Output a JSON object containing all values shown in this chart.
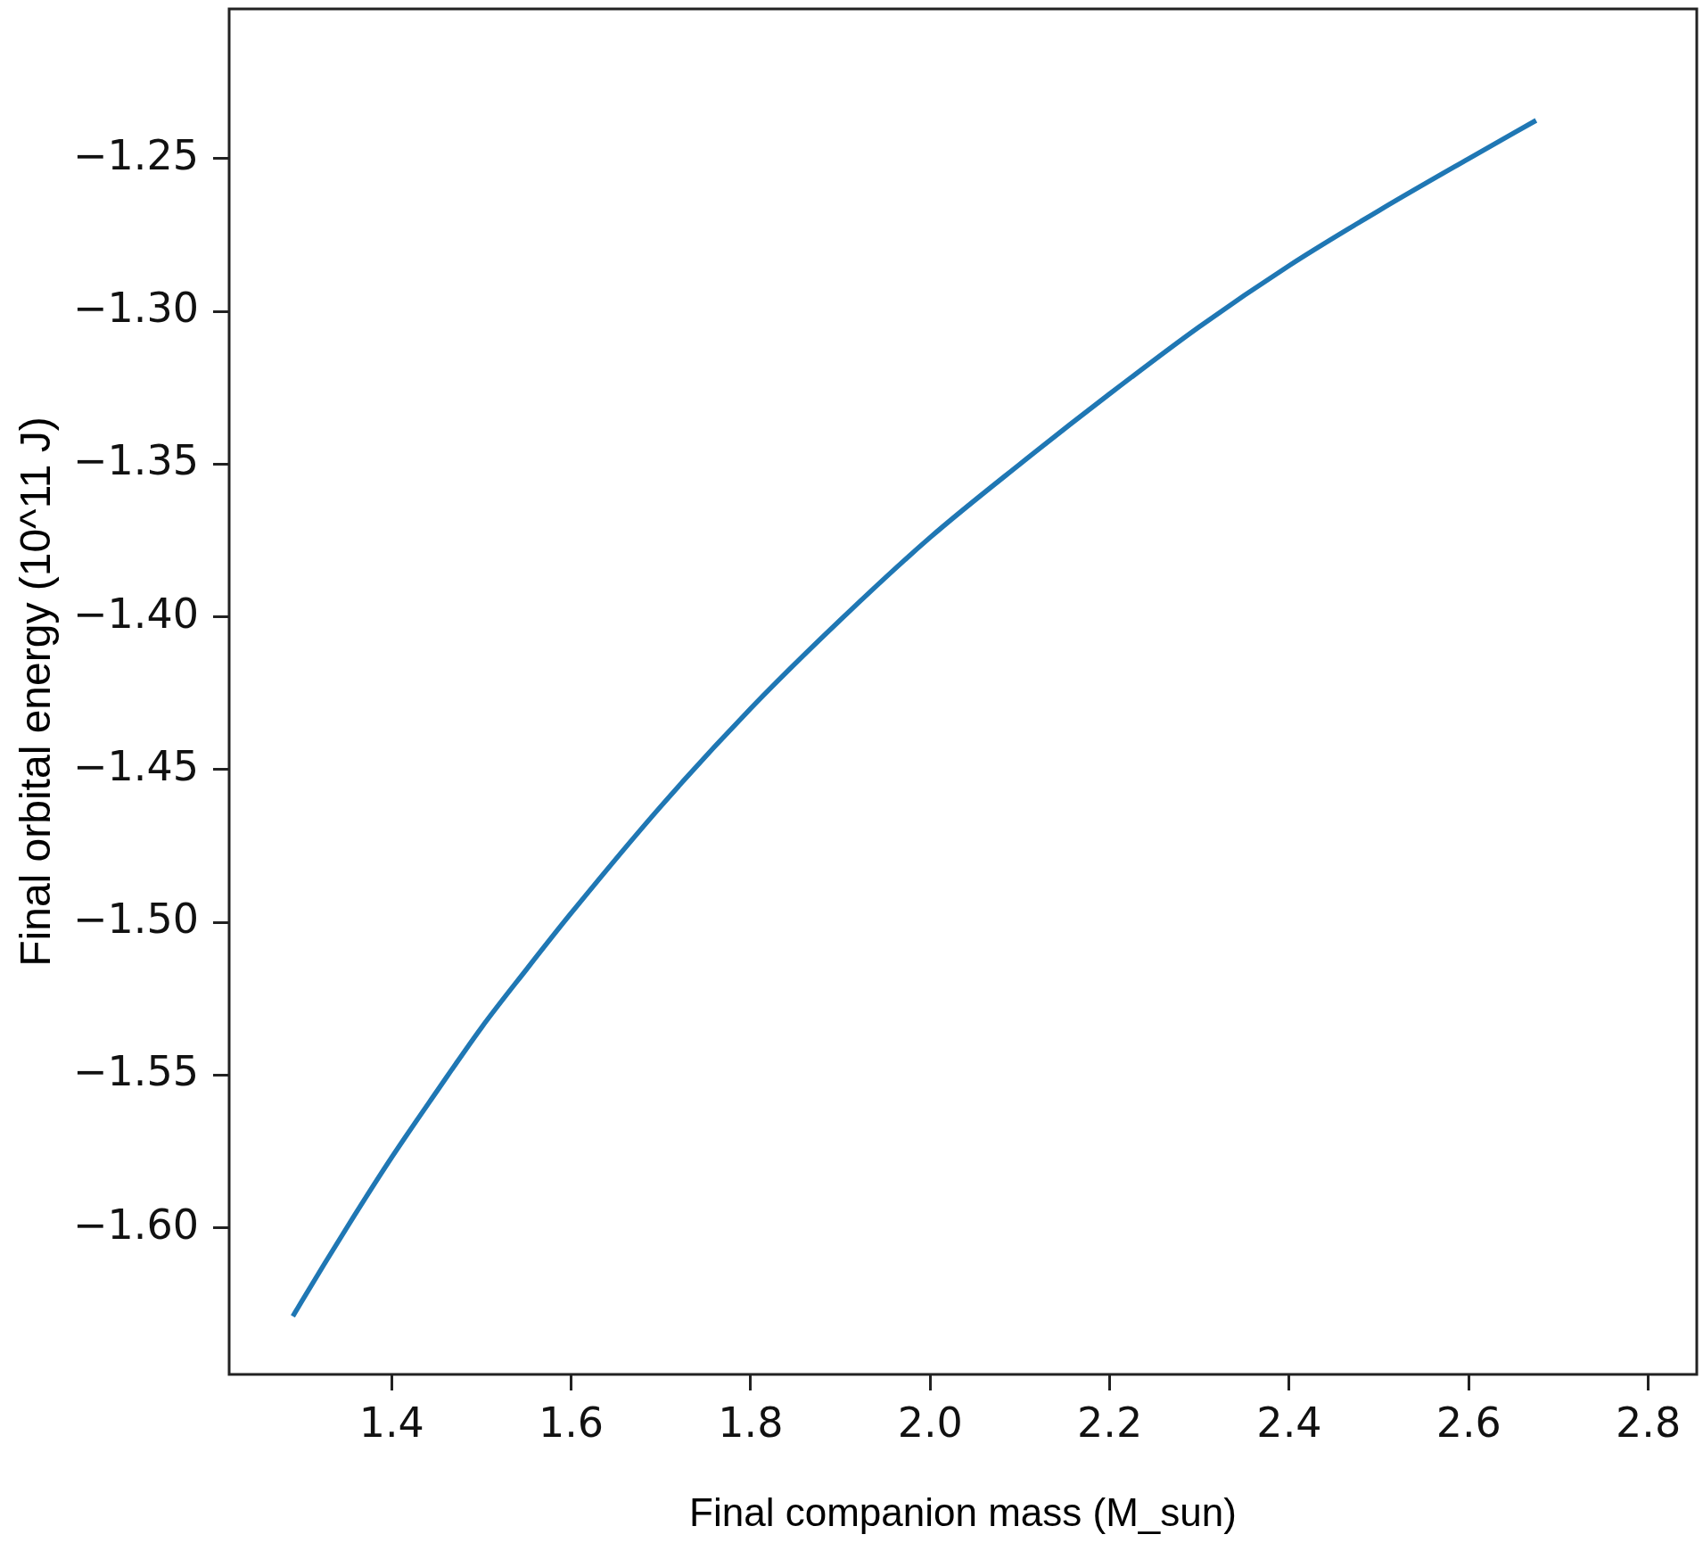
{
  "chart_data": {
    "type": "line",
    "xlabel": "Final companion mass (M_sun)",
    "ylabel": "Final orbital energy (10^11 J)",
    "x": [
      1.29,
      1.3,
      1.35,
      1.4,
      1.45,
      1.5,
      1.55,
      1.6,
      1.7,
      1.8,
      1.9,
      2.0,
      2.1,
      2.2,
      2.3,
      2.4,
      2.5,
      2.6,
      2.675
    ],
    "series": [
      {
        "color": "#1f77b4",
        "values": [
          -1.629,
          -1.624,
          -1.6,
          -1.577,
          -1.5555,
          -1.5345,
          -1.5155,
          -1.497,
          -1.462,
          -1.43,
          -1.401,
          -1.374,
          -1.35,
          -1.327,
          -1.305,
          -1.285,
          -1.267,
          -1.25,
          -1.2375
        ]
      }
    ],
    "xlim": [
      1.219,
      2.854
    ],
    "ylim": [
      -1.648,
      -1.201
    ],
    "xticks": [
      1.4,
      1.6,
      1.8,
      {
        "value": 2,
        "label": "2.0"
      },
      2.2,
      2.4,
      2.6,
      2.8
    ],
    "yticks": [
      {
        "value": -1.25,
        "label": "−1.25"
      },
      {
        "value": -1.3,
        "label": "−1.30"
      },
      {
        "value": -1.35,
        "label": "−1.35"
      },
      {
        "value": -1.4,
        "label": "−1.40"
      },
      {
        "value": -1.45,
        "label": "−1.45"
      },
      {
        "value": -1.5,
        "label": "−1.50"
      },
      {
        "value": -1.55,
        "label": "−1.55"
      },
      {
        "value": -1.6,
        "label": "−1.60"
      }
    ]
  }
}
